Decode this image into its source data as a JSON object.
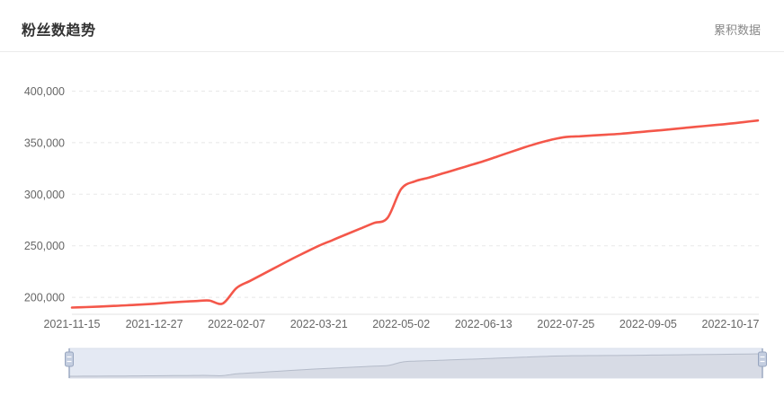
{
  "header": {
    "title": "粉丝数趋势",
    "subtitle": "累积数据"
  },
  "colors": {
    "line": "#f4574a",
    "title_text": "#333333",
    "subtitle_text": "#888888",
    "axis_label": "#666666",
    "grid_line": "#e8e8e8",
    "axis_line": "#e0e0e0",
    "slider_track_bg": "#e4e9f3",
    "slider_area_fill": "#d7dbe5",
    "slider_outline": "#b4bbc9",
    "slider_border": "#d9dfeb",
    "slider_handle_fill": "#c4cee0",
    "slider_handle_stroke": "#97a5bf",
    "slider_handle_grip": "#ffffff"
  },
  "chart_data": {
    "type": "line",
    "title": "粉丝数趋势",
    "subtitle": "累积数据",
    "legend_position": "none",
    "grid": "horizontal dashed",
    "smooth": true,
    "x": [
      "2021-11-15",
      "2021-11-22",
      "2021-11-29",
      "2021-12-06",
      "2021-12-13",
      "2021-12-20",
      "2021-12-27",
      "2022-01-03",
      "2022-01-10",
      "2022-01-17",
      "2022-01-24",
      "2022-01-31",
      "2022-02-07",
      "2022-02-14",
      "2022-02-21",
      "2022-02-28",
      "2022-03-07",
      "2022-03-14",
      "2022-03-21",
      "2022-03-28",
      "2022-04-04",
      "2022-04-11",
      "2022-04-18",
      "2022-04-25",
      "2022-05-02",
      "2022-05-09",
      "2022-05-16",
      "2022-05-23",
      "2022-05-30",
      "2022-06-06",
      "2022-06-13",
      "2022-06-20",
      "2022-06-27",
      "2022-07-04",
      "2022-07-11",
      "2022-07-18",
      "2022-07-25",
      "2022-08-01",
      "2022-08-08",
      "2022-08-15",
      "2022-08-22",
      "2022-08-29",
      "2022-09-05",
      "2022-09-12",
      "2022-09-19",
      "2022-09-26",
      "2022-10-03",
      "2022-10-10",
      "2022-10-17",
      "2022-10-24",
      "2022-10-31"
    ],
    "series": [
      {
        "name": "粉丝数",
        "color": "#f4574a",
        "values": [
          190000,
          190500,
          191000,
          191600,
          192200,
          192900,
          193700,
          194700,
          195600,
          196300,
          196800,
          194000,
          209000,
          216000,
          223000,
          230000,
          237000,
          243500,
          250000,
          255500,
          261000,
          266500,
          272000,
          277000,
          305000,
          312500,
          316000,
          320000,
          324000,
          328000,
          332000,
          336500,
          341000,
          345500,
          349500,
          353000,
          355500,
          356200,
          357000,
          357800,
          358600,
          359800,
          361000,
          362200,
          363500,
          364800,
          366000,
          367200,
          368500,
          370000,
          371500
        ]
      }
    ],
    "x_tick_labels": [
      "2021-11-15",
      "2021-12-27",
      "2022-02-07",
      "2022-03-21",
      "2022-05-02",
      "2022-06-13",
      "2022-07-25",
      "2022-09-05",
      "2022-10-17"
    ],
    "x_tick_every": 6,
    "y_ticks": [
      200000,
      250000,
      300000,
      350000,
      400000
    ],
    "y_tick_labels": [
      "200,000",
      "250,000",
      "300,000",
      "350,000",
      "400,000"
    ],
    "ylim": [
      183500,
      410000
    ],
    "datazoom": {
      "enabled": true,
      "range_percent": [
        0,
        100
      ]
    }
  }
}
